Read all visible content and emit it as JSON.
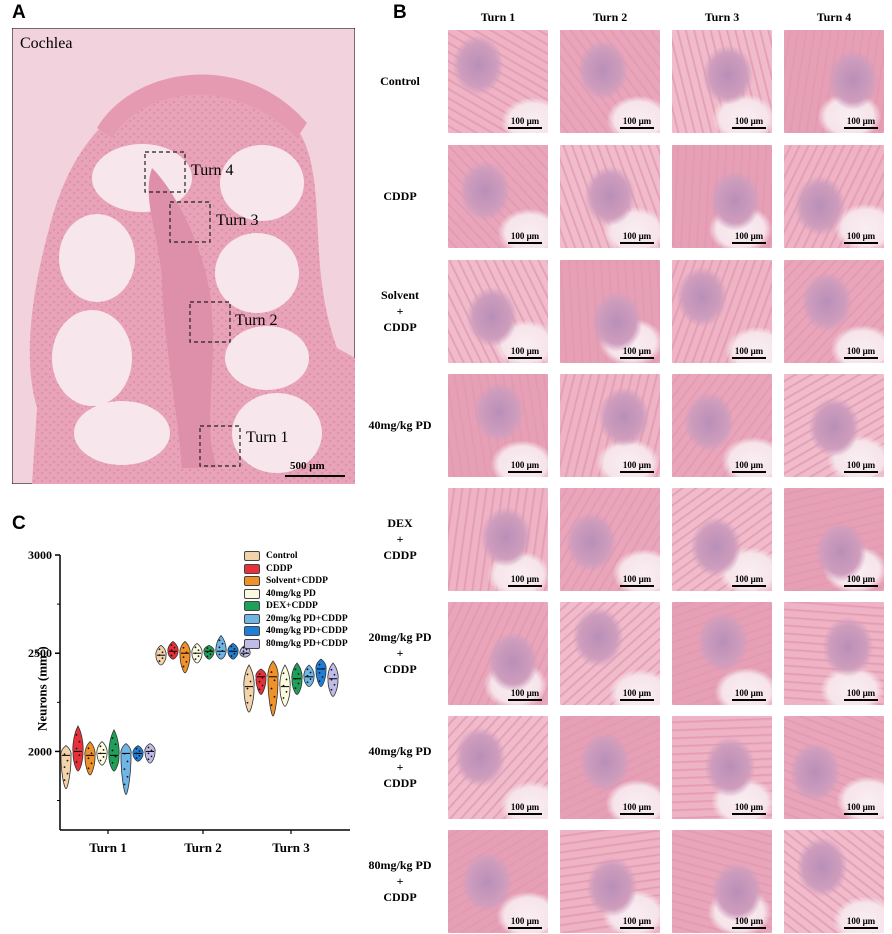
{
  "panel_a": {
    "letter": "A",
    "title": "Cochlea",
    "boxes": [
      "Turn 4",
      "Turn 3",
      "Turn 2",
      "Turn 1"
    ],
    "scale_bar": "500 μm"
  },
  "panel_b": {
    "letter": "B",
    "columns": [
      "Turn 1",
      "Turn 2",
      "Turn 3",
      "Turn 4"
    ],
    "rows": [
      {
        "lines": [
          "Control"
        ]
      },
      {
        "lines": [
          "CDDP"
        ]
      },
      {
        "lines": [
          "Solvent",
          "+",
          "CDDP"
        ]
      },
      {
        "lines": [
          "40mg/kg PD"
        ]
      },
      {
        "lines": [
          "DEX",
          "+",
          "CDDP"
        ]
      },
      {
        "lines": [
          "20mg/kg PD",
          "+",
          "CDDP"
        ]
      },
      {
        "lines": [
          "40mg/kg PD",
          "+",
          "CDDP"
        ]
      },
      {
        "lines": [
          "80mg/kg PD",
          "+",
          "CDDP"
        ]
      }
    ],
    "scale_bar": "100 μm"
  },
  "panel_c": {
    "letter": "C",
    "ylabel": "Neurons (mm",
    "ylabel_sup": "2",
    "ylabel_end": ")"
  },
  "chart_data": {
    "type": "violin",
    "ylim": [
      1600,
      3000
    ],
    "yticks": [
      "2000",
      "2500",
      "3000"
    ],
    "categories": [
      "Turn 1",
      "Turn 2",
      "Turn 3"
    ],
    "legend_position": "top-right",
    "series": [
      {
        "name": "Control",
        "color": "#f2d3aa",
        "medians": [
          1980,
          2490,
          2330
        ],
        "mins": [
          1810,
          2440,
          2200
        ],
        "maxs": [
          2030,
          2540,
          2440
        ]
      },
      {
        "name": "CDDP",
        "color": "#e8303a",
        "medians": [
          2000,
          2510,
          2380
        ],
        "mins": [
          1900,
          2470,
          2290
        ],
        "maxs": [
          2130,
          2560,
          2420
        ]
      },
      {
        "name": "Solvent+CDDP",
        "color": "#f0922a",
        "medians": [
          1980,
          2500,
          2380
        ],
        "mins": [
          1880,
          2400,
          2180
        ],
        "maxs": [
          2050,
          2560,
          2460
        ]
      },
      {
        "name": "40mg/kg PD",
        "color": "#fbfbe0",
        "medians": [
          1990,
          2500,
          2330
        ],
        "mins": [
          1930,
          2450,
          2230
        ],
        "maxs": [
          2050,
          2550,
          2440
        ]
      },
      {
        "name": "DEX+CDDP",
        "color": "#1fa05a",
        "medians": [
          1980,
          2510,
          2370
        ],
        "mins": [
          1900,
          2470,
          2290
        ],
        "maxs": [
          2110,
          2540,
          2450
        ]
      },
      {
        "name": "20mg/kg PD+CDDP",
        "color": "#6fb5e6",
        "medians": [
          1990,
          2510,
          2380
        ],
        "mins": [
          1780,
          2470,
          2330
        ],
        "maxs": [
          2040,
          2590,
          2440
        ]
      },
      {
        "name": "40mg/kg PD+CDDP",
        "color": "#1e7fd8",
        "medians": [
          1990,
          2510,
          2420
        ],
        "mins": [
          1950,
          2470,
          2330
        ],
        "maxs": [
          2030,
          2550,
          2470
        ]
      },
      {
        "name": "80mg/kg PD+CDDP",
        "color": "#bfbde8",
        "medians": [
          2000,
          2500,
          2370
        ],
        "mins": [
          1940,
          2480,
          2280
        ],
        "maxs": [
          2040,
          2540,
          2450
        ]
      }
    ]
  }
}
